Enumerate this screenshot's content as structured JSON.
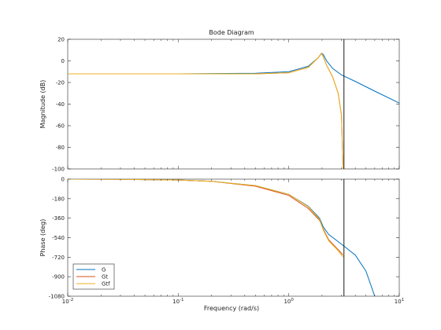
{
  "chart_data": {
    "type": "line",
    "title": "Bode Diagram",
    "xlabel": "Frequency  (rad/s)",
    "xscale": "log",
    "xlim": [
      0.01,
      10
    ],
    "x_tick_labels": [
      "10^-2",
      "10^-1",
      "10^0",
      "10^1"
    ],
    "marker_frequency": 3.16,
    "legend": {
      "placement": "bottom-left",
      "entries": [
        "G",
        "Gt",
        "Gtf"
      ]
    },
    "colors": {
      "G": "#0072bd",
      "Gt": "#d95319",
      "Gtf": "#edb120",
      "marker": "#000000"
    },
    "panels": [
      {
        "name": "magnitude",
        "ylabel": "Magnitude (dB)",
        "ylim": [
          -100,
          20
        ],
        "yticks": [
          20,
          0,
          -20,
          -40,
          -60,
          -80,
          -100
        ],
        "series": [
          {
            "name": "G",
            "points": [
              [
                0.01,
                -12
              ],
              [
                0.1,
                -12
              ],
              [
                0.5,
                -11.5
              ],
              [
                1,
                -10
              ],
              [
                1.5,
                -5
              ],
              [
                1.85,
                3
              ],
              [
                1.98,
                7
              ],
              [
                2.05,
                6
              ],
              [
                2.2,
                0
              ],
              [
                2.5,
                -7
              ],
              [
                3,
                -13
              ],
              [
                4,
                -19
              ],
              [
                6,
                -28
              ],
              [
                10,
                -39
              ]
            ]
          },
          {
            "name": "Gt",
            "points": [
              [
                0.01,
                -12
              ],
              [
                0.1,
                -12
              ],
              [
                0.5,
                -12
              ],
              [
                1,
                -11
              ],
              [
                1.5,
                -6
              ],
              [
                1.85,
                3
              ],
              [
                1.97,
                7
              ],
              [
                2.05,
                4
              ],
              [
                2.2,
                -4
              ],
              [
                2.5,
                -15
              ],
              [
                2.8,
                -30
              ],
              [
                3.0,
                -50
              ],
              [
                3.1,
                -100
              ]
            ]
          },
          {
            "name": "Gtf",
            "points": [
              [
                0.01,
                -12
              ],
              [
                0.1,
                -12
              ],
              [
                0.5,
                -12
              ],
              [
                1,
                -11
              ],
              [
                1.5,
                -6
              ],
              [
                1.85,
                3
              ],
              [
                1.97,
                7
              ],
              [
                2.05,
                4
              ],
              [
                2.2,
                -4
              ],
              [
                2.5,
                -15
              ],
              [
                2.8,
                -30
              ],
              [
                3.0,
                -50
              ],
              [
                3.1,
                -100
              ]
            ]
          }
        ]
      },
      {
        "name": "phase",
        "ylabel": "Phase (deg)",
        "ylim": [
          -1080,
          0
        ],
        "yticks": [
          0,
          -180,
          -360,
          -540,
          -720,
          -900,
          -1080
        ],
        "series": [
          {
            "name": "G",
            "points": [
              [
                0.01,
                0
              ],
              [
                0.03,
                -2
              ],
              [
                0.1,
                -8
              ],
              [
                0.2,
                -20
              ],
              [
                0.5,
                -60
              ],
              [
                1,
                -140
              ],
              [
                1.5,
                -250
              ],
              [
                1.9,
                -360
              ],
              [
                2.05,
                -440
              ],
              [
                2.3,
                -510
              ],
              [
                3,
                -600
              ],
              [
                4,
                -700
              ],
              [
                5,
                -850
              ],
              [
                6,
                -1080
              ]
            ]
          },
          {
            "name": "Gt",
            "points": [
              [
                0.01,
                0
              ],
              [
                0.03,
                -2
              ],
              [
                0.1,
                -8
              ],
              [
                0.2,
                -20
              ],
              [
                0.5,
                -65
              ],
              [
                1,
                -150
              ],
              [
                1.5,
                -270
              ],
              [
                1.9,
                -380
              ],
              [
                2.05,
                -460
              ],
              [
                2.3,
                -560
              ],
              [
                2.8,
                -650
              ],
              [
                3.1,
                -700
              ]
            ]
          },
          {
            "name": "Gtf",
            "points": [
              [
                0.01,
                0
              ],
              [
                0.03,
                -2
              ],
              [
                0.1,
                -8
              ],
              [
                0.2,
                -20
              ],
              [
                0.5,
                -60
              ],
              [
                1,
                -140
              ],
              [
                1.5,
                -255
              ],
              [
                1.9,
                -370
              ],
              [
                2.05,
                -470
              ],
              [
                2.3,
                -570
              ],
              [
                2.8,
                -660
              ],
              [
                3.1,
                -720
              ]
            ]
          }
        ]
      }
    ]
  }
}
